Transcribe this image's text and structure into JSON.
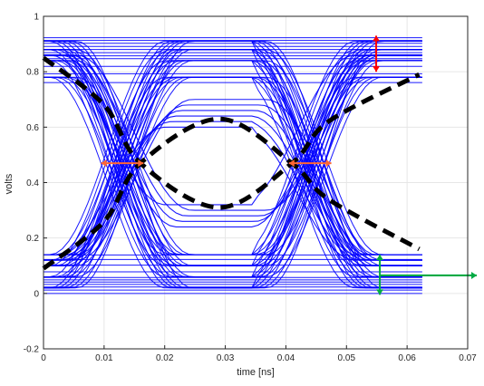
{
  "chart_data": {
    "type": "line",
    "xlabel": "time [ns]",
    "ylabel": "volts",
    "xlim": [
      0,
      0.07
    ],
    "ylim": [
      -0.2,
      1
    ],
    "xticks": [
      0,
      0.01,
      0.02,
      0.03,
      0.04,
      0.05,
      0.06,
      0.07
    ],
    "xtick_labels": [
      "0",
      "0.01",
      "0.02",
      "0.03",
      "0.04",
      "0.05",
      "0.06",
      "0.07"
    ],
    "yticks": [
      -0.2,
      0,
      0.2,
      0.4,
      0.6,
      0.8,
      1
    ],
    "ytick_labels": [
      "-0.2",
      "0",
      "0.2",
      "0.4",
      "0.6",
      "0.8",
      "1"
    ],
    "grid": true,
    "eye_diagram": {
      "period": 0.0313,
      "t_end": 0.0625,
      "high_rails": [
        0.76,
        0.79,
        0.82,
        0.85,
        0.86,
        0.87,
        0.88,
        0.89,
        0.9,
        0.91,
        0.92
      ],
      "low_rails": [
        0.0,
        0.01,
        0.02,
        0.03,
        0.04,
        0.05,
        0.06,
        0.08,
        0.1,
        0.12,
        0.14
      ],
      "mid_high_levels": [
        0.6,
        0.62,
        0.64,
        0.66,
        0.68,
        0.7
      ],
      "mid_low_levels": [
        0.24,
        0.26,
        0.28,
        0.3,
        0.32
      ],
      "line_color": "#0000ff"
    },
    "highlighted_trace": {
      "name": "",
      "color": "#000000",
      "style": "dashed",
      "x": [
        0,
        0.01,
        0.016,
        0.029,
        0.041,
        0.047,
        0.062
      ],
      "y": [
        0.09,
        0.26,
        0.47,
        0.63,
        0.47,
        0.34,
        0.16
      ]
    },
    "highlighted_trace_2": {
      "name": "",
      "color": "#000000",
      "style": "dashed",
      "x": [
        0,
        0.01,
        0.016,
        0.029,
        0.041,
        0.047,
        0.062
      ],
      "y": [
        0.85,
        0.68,
        0.47,
        0.31,
        0.47,
        0.62,
        0.79
      ]
    },
    "annotations": [
      {
        "kind": "horizontal-double-arrow",
        "color": "#ff6633",
        "x": [
          0.0095,
          0.0165
        ],
        "y": 0.47
      },
      {
        "kind": "horizontal-double-arrow",
        "color": "#ff6633",
        "x": [
          0.0405,
          0.0475
        ],
        "y": 0.47
      },
      {
        "kind": "vertical-double-arrow",
        "color": "#ff0000",
        "x": 0.0549,
        "y": [
          0.8,
          0.93
        ]
      },
      {
        "kind": "vertical-double-arrow",
        "color": "#00aa44",
        "x": 0.0555,
        "y": [
          -0.005,
          0.14
        ]
      },
      {
        "kind": "horizontal-arrow",
        "color": "#00aa44",
        "x": [
          0.0555,
          0.0715
        ],
        "y": 0.065
      }
    ]
  }
}
